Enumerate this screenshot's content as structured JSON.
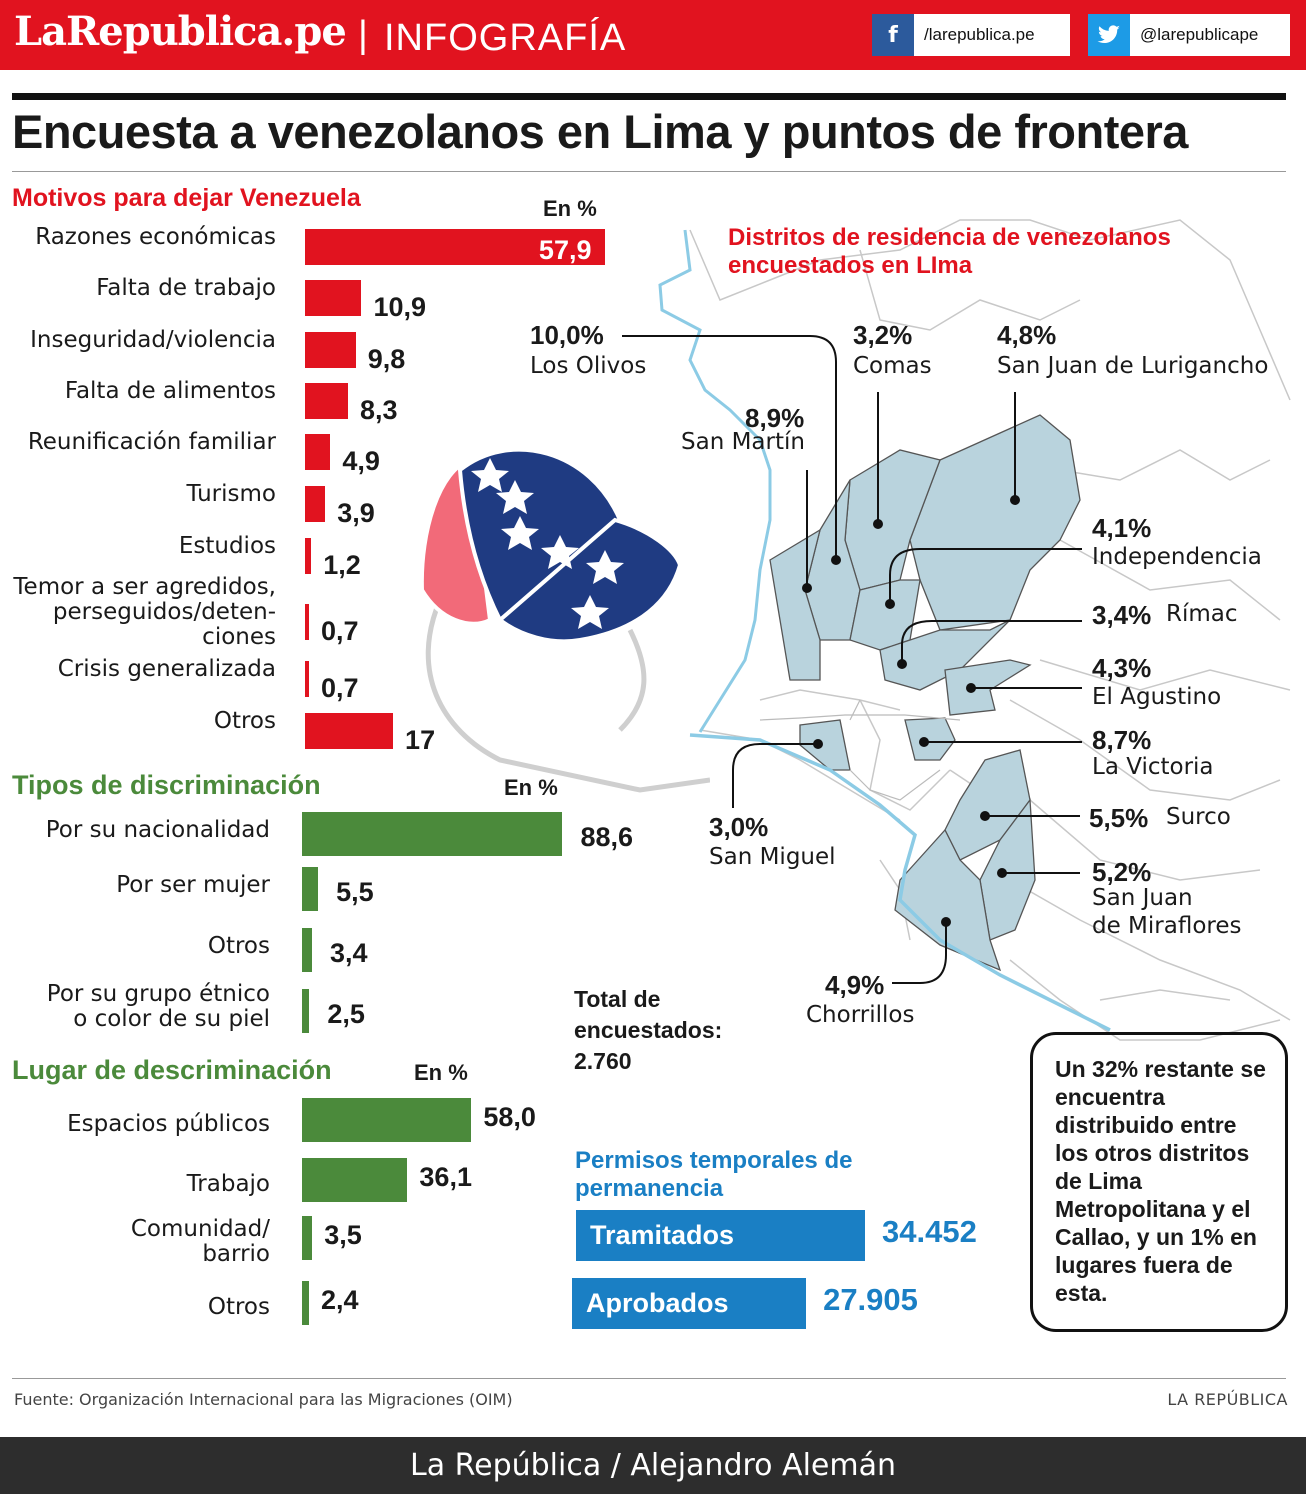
{
  "header": {
    "brand": "LaRepublica.pe",
    "separator": "|",
    "section": "INFOGRAFÍA",
    "facebook": "/larepublica.pe",
    "twitter": "@larepublicape"
  },
  "title": "Encuesta a venezolanos en Lima y puntos de frontera",
  "chart_data": [
    {
      "type": "bar",
      "orientation": "horizontal",
      "title": "Motivos para dejar Venezuela",
      "unit": "En %",
      "color": "#e1131f",
      "categories": [
        "Razones económicas",
        "Falta de trabajo",
        "Inseguridad/violencia",
        "Falta de alimentos",
        "Reunificación familiar",
        "Turismo",
        "Estudios",
        "Temor a ser agredidos, perseguidos/deten- ciones",
        "Crisis generalizada",
        "Otros"
      ],
      "values": [
        57.9,
        10.9,
        9.8,
        8.3,
        4.9,
        3.9,
        1.2,
        0.7,
        0.7,
        17
      ],
      "labels": [
        "57,9",
        "10,9",
        "9,8",
        "8,3",
        "4,9",
        "3,9",
        "1,2",
        "0,7",
        "0,7",
        "17"
      ]
    },
    {
      "type": "bar",
      "orientation": "horizontal",
      "title": "Tipos de discriminación",
      "unit": "En %",
      "color": "#4b8a3b",
      "categories": [
        "Por su nacionalidad",
        "Por ser mujer",
        "Otros",
        "Por su grupo étnico o color de su piel"
      ],
      "values": [
        88.6,
        5.5,
        3.4,
        2.5
      ],
      "labels": [
        "88,6",
        "5,5",
        "3,4",
        "2,5"
      ]
    },
    {
      "type": "bar",
      "orientation": "horizontal",
      "title": "Lugar de descriminación",
      "unit": "En %",
      "color": "#4b8a3b",
      "categories": [
        "Espacios públicos",
        "Trabajo",
        "Comunidad/ barrio",
        "Otros"
      ],
      "values": [
        58.0,
        36.1,
        3.5,
        2.4
      ],
      "labels": [
        "58,0",
        "36,1",
        "3,5",
        "2,4"
      ]
    },
    {
      "type": "bar",
      "orientation": "horizontal",
      "title": "Permisos temporales de permanencia",
      "color": "#1a7fc4",
      "categories": [
        "Tramitados",
        "Aprobados"
      ],
      "values": [
        34452,
        27905
      ],
      "labels": [
        "34.452",
        "27.905"
      ]
    },
    {
      "type": "map",
      "title": "Distritos de residencia de venezolanos encuestados en LIma",
      "districts": [
        {
          "name": "Los Olivos",
          "value": 10.0,
          "label": "10,0%"
        },
        {
          "name": "Comas",
          "value": 3.2,
          "label": "3,2%"
        },
        {
          "name": "San Juan de Lurigancho",
          "value": 4.8,
          "label": "4,8%"
        },
        {
          "name": "San Martín",
          "value": 8.9,
          "label": "8,9%"
        },
        {
          "name": "Independencia",
          "value": 4.1,
          "label": "4,1%"
        },
        {
          "name": "Rímac",
          "value": 3.4,
          "label": "3,4%"
        },
        {
          "name": "El Agustino",
          "value": 4.3,
          "label": "4,3%"
        },
        {
          "name": "La Victoria",
          "value": 8.7,
          "label": "8,7%"
        },
        {
          "name": "San Miguel",
          "value": 3.0,
          "label": "3,0%"
        },
        {
          "name": "Surco",
          "value": 5.5,
          "label": "5,5%"
        },
        {
          "name": "San Juan de Miraflores",
          "value": 5.2,
          "label": "5,2%"
        },
        {
          "name": "Chorrillos",
          "value": 4.9,
          "label": "4,9%"
        }
      ]
    }
  ],
  "total": {
    "line1": "Total de",
    "line2": "encuestados:",
    "value": "2.760"
  },
  "note": "Un 32% restante se encuentra distribuido entre los otros distritos de Lima Metropolitana y el Callao, y un 1% en lugares fuera de esta.",
  "source": "Fuente: Organización Internacional para las Migraciones (OIM)",
  "brand_small": "LA REPÚBLICA",
  "credit": "La República / Alejandro Alemán"
}
